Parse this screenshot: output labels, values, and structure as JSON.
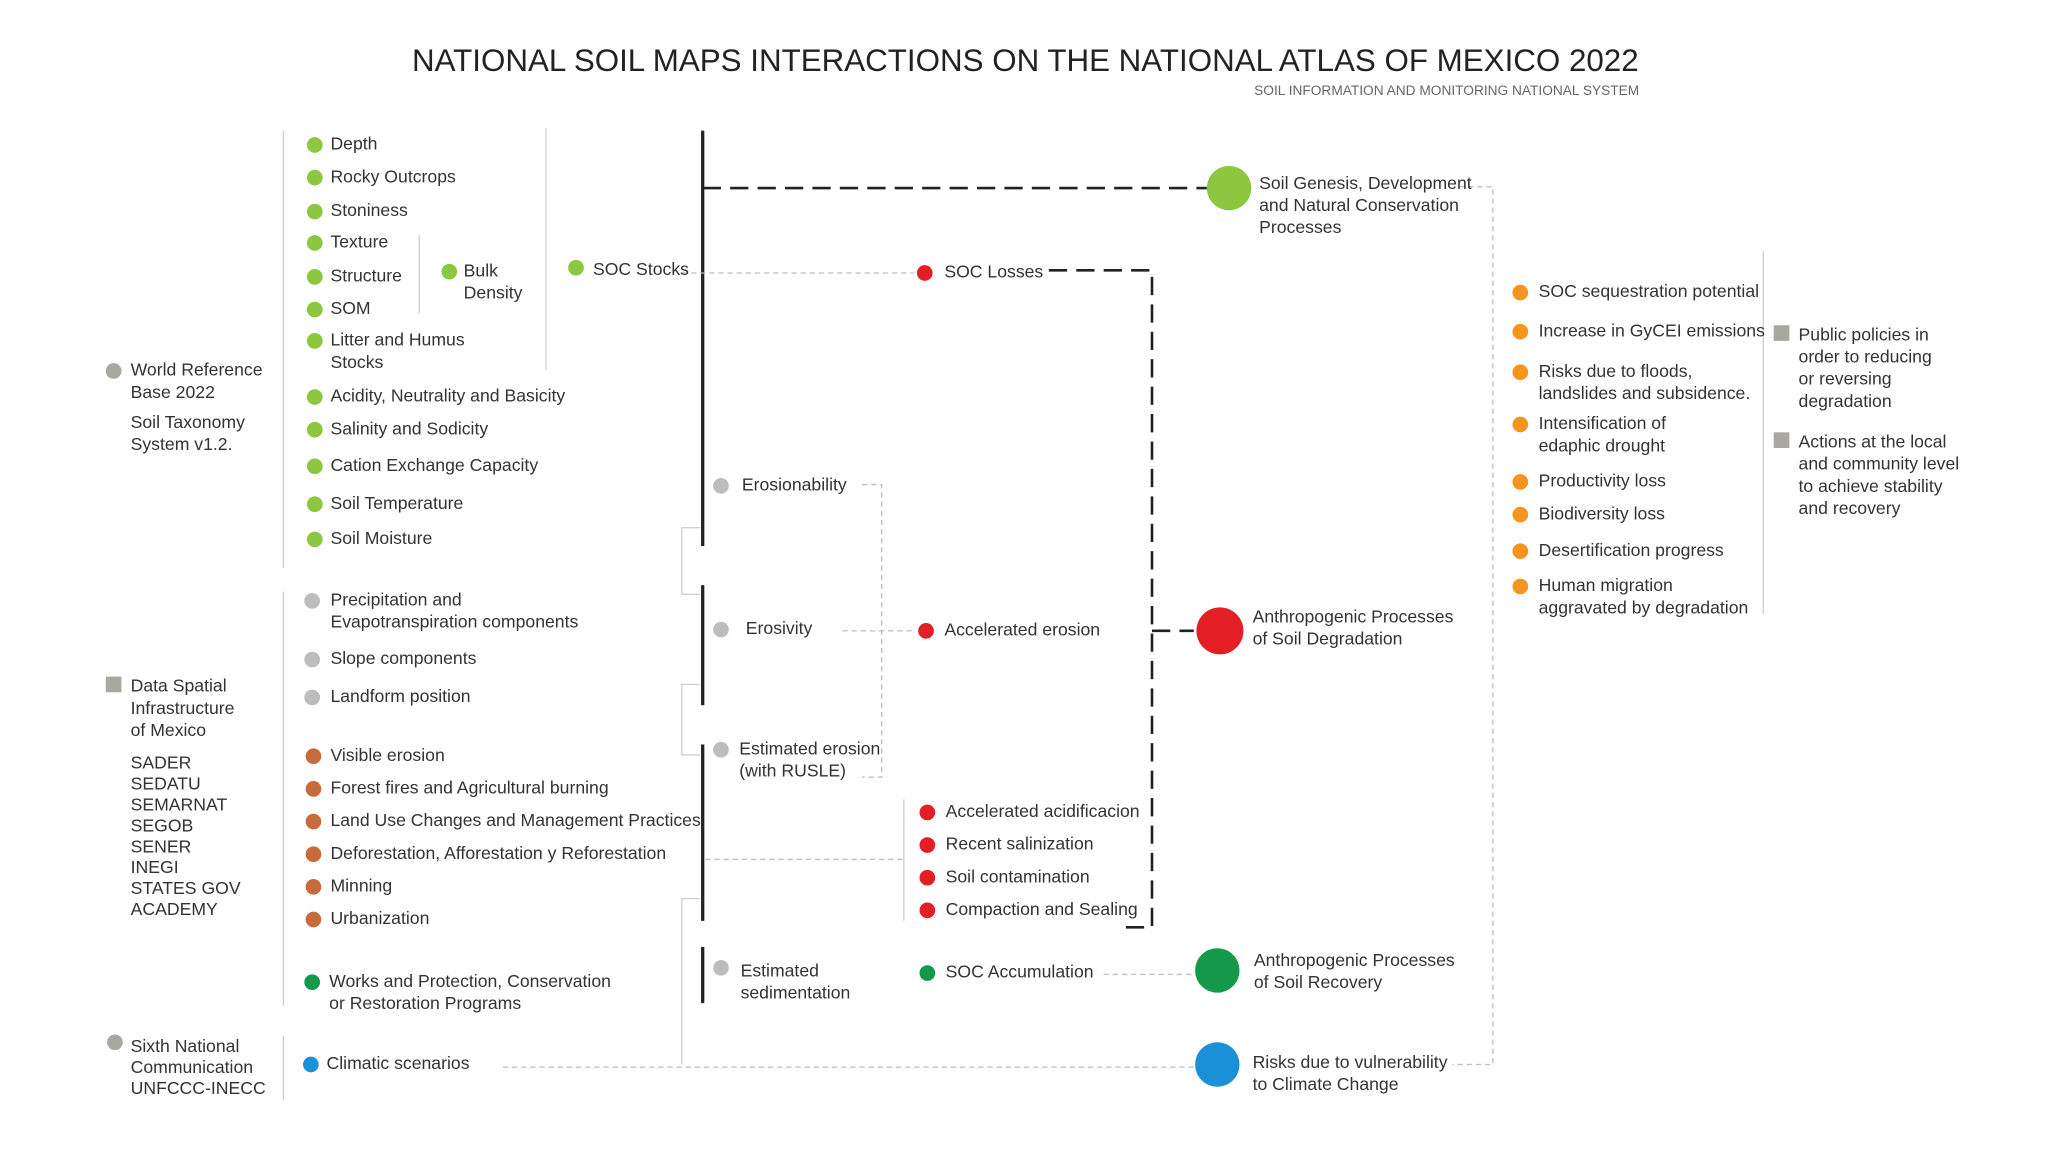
{
  "header": {
    "title": "NATIONAL SOIL MAPS INTERACTIONS ON THE NATIONAL ATLAS OF MEXICO 2022",
    "subtitle": "SOIL INFORMATION AND MONITORING NATIONAL SYSTEM"
  },
  "sources": [
    [
      "World Reference",
      "Base 2022"
    ],
    [
      "Soil Taxonomy",
      "System v1.2."
    ],
    [
      "Data Spatial",
      "Infrastructure",
      "of Mexico"
    ],
    [
      "SADER",
      "SEDATU",
      "SEMARNAT",
      "SEGOB",
      "SENER",
      "INEGI",
      "STATES GOV",
      "ACADEMY"
    ],
    [
      "Sixth National",
      "Communication",
      "UNFCCC-INECC"
    ]
  ],
  "soil_properties": [
    [
      "Depth"
    ],
    [
      "Rocky Outcrops"
    ],
    [
      "Stoniness"
    ],
    [
      "Texture"
    ],
    [
      "Structure"
    ],
    [
      "SOM"
    ],
    [
      "Litter and Humus",
      "Stocks"
    ],
    [
      "Acidity, Neutrality and Basicity"
    ],
    [
      "Salinity and Sodicity"
    ],
    [
      "Cation Exchange Capacity"
    ],
    [
      "Soil Temperature"
    ],
    [
      "Soil Moisture"
    ]
  ],
  "bulk_density": [
    "Bulk",
    "Density"
  ],
  "soc_stocks": [
    "SOC Stocks"
  ],
  "terrain_factors": [
    [
      "Precipitation and",
      "Evapotranspiration components"
    ],
    [
      "Slope components"
    ],
    [
      "Landform position"
    ]
  ],
  "land_use_factors": [
    [
      "Visible erosion"
    ],
    [
      "Forest fires and Agricultural burning"
    ],
    [
      "Land Use Changes and Management Practices"
    ],
    [
      "Deforestation, Afforestation y Reforestation"
    ],
    [
      "Minning"
    ],
    [
      "Urbanization"
    ]
  ],
  "recovery_factors": [
    [
      "Works and Protection, Conservation",
      "or Restoration Programs"
    ]
  ],
  "climate_factors": [
    [
      "Climatic scenarios"
    ]
  ],
  "erosion_models": [
    [
      "Erosionability"
    ],
    [
      "Erosivity"
    ],
    [
      "Estimated erosion",
      "(with RUSLE)"
    ],
    [
      "Estimated",
      "sedimentation"
    ]
  ],
  "soc_losses": [
    "SOC Losses"
  ],
  "accelerated_erosion": [
    "Accelerated erosion"
  ],
  "degradation_processes": [
    [
      "Accelerated acidificacion"
    ],
    [
      "Recent salinization"
    ],
    [
      "Soil contamination"
    ],
    [
      "Compaction and Sealing"
    ]
  ],
  "soc_accumulation": [
    "SOC Accumulation"
  ],
  "outcomes": [
    [
      "Soil Genesis, Development",
      "and Natural Conservation",
      "Processes"
    ],
    [
      "Anthropogenic Processes",
      "of Soil Degradation"
    ],
    [
      "Anthropogenic Processes",
      "of Soil Recovery"
    ],
    [
      "Risks due to vulnerability",
      "to Climate Change"
    ]
  ],
  "impacts": [
    [
      "SOC sequestration potential"
    ],
    [
      "Increase in GyCEI emissions"
    ],
    [
      "Risks due to floods,",
      "landslides and subsidence."
    ],
    [
      "Intensification of",
      "edaphic drought"
    ],
    [
      "Productivity loss"
    ],
    [
      "Biodiversity loss"
    ],
    [
      "Desertification progress"
    ],
    [
      "Human migration",
      "aggravated by degradation"
    ]
  ],
  "responses": [
    [
      "Public policies in",
      "order to reducing",
      "or reversing",
      "degradation"
    ],
    [
      "Actions at the local",
      "and community level",
      "to achieve stability",
      "and recovery"
    ]
  ]
}
